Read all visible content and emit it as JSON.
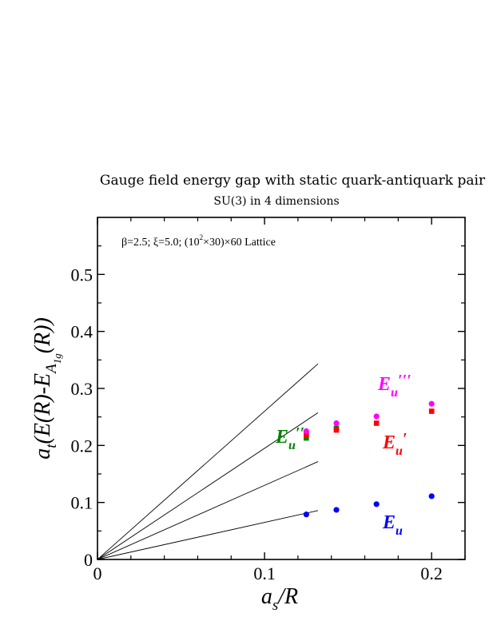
{
  "chart_data": {
    "type": "scatter",
    "title": "Gauge field energy gap with static quark-antiquark pair",
    "subtitle": "SU(3) in 4 dimensions",
    "annotation": "β=2.5;  ξ=5.0; (10²×30)×60 Lattice",
    "xlabel": "a_s/R",
    "ylabel": "a_t(E(R)-E_A1g(R))",
    "xlim": [
      0,
      0.22
    ],
    "ylim": [
      0,
      0.6
    ],
    "x_ticks": [
      0,
      0.1,
      0.2
    ],
    "x_tick_labels": [
      "0",
      "0.1",
      "0.2"
    ],
    "y_ticks": [
      0,
      0.1,
      0.2,
      0.3,
      0.4,
      0.5
    ],
    "y_tick_labels": [
      "0",
      "0.1",
      "0.2",
      "0.3",
      "0.4",
      "0.5"
    ],
    "grid": false,
    "x": [
      0.125,
      0.143,
      0.167,
      0.2
    ],
    "series": [
      {
        "name": "Eu",
        "color": "#0000ff",
        "marker": "circle",
        "values": [
          0.079,
          0.087,
          0.097,
          0.111
        ]
      },
      {
        "name": "Eu′′",
        "color": "#008000",
        "marker": "square",
        "values": [
          0.213,
          0.23,
          null,
          null
        ]
      },
      {
        "name": "Eu′",
        "color": "#ff0000",
        "marker": "square",
        "values": [
          0.219,
          0.227,
          0.239,
          0.26
        ]
      },
      {
        "name": "Eu′′′",
        "color": "#ff00ff",
        "marker": "circle",
        "values": [
          0.225,
          0.239,
          0.251,
          0.273
        ]
      }
    ],
    "reference_lines": [
      {
        "slope": 2.6,
        "x_end": 0.132
      },
      {
        "slope": 1.95,
        "x_end": 0.132
      },
      {
        "slope": 1.3,
        "x_end": 0.132
      },
      {
        "slope": 0.65,
        "x_end": 0.132
      }
    ]
  }
}
